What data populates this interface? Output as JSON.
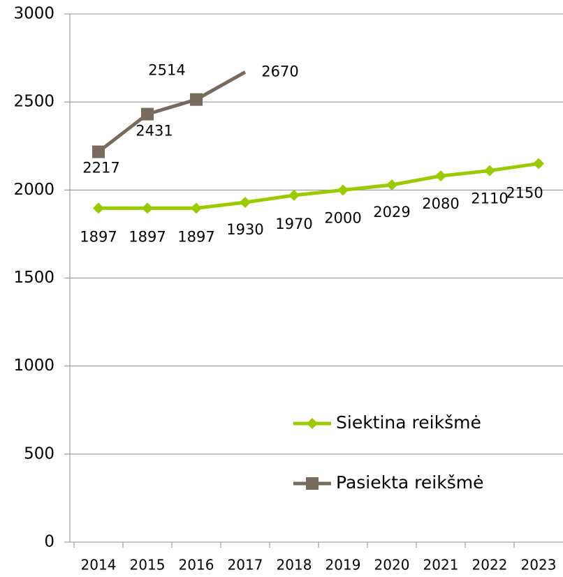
{
  "chart_data": {
    "type": "line",
    "categories": [
      "2014",
      "2015",
      "2016",
      "2017",
      "2018",
      "2019",
      "2020",
      "2021",
      "2022",
      "2023"
    ],
    "series": [
      {
        "name": "Siektina reikšmė",
        "color": "#99cc00",
        "marker": "diamond",
        "values": [
          1897,
          1897,
          1897,
          1930,
          1970,
          2000,
          2029,
          2080,
          2110,
          2150
        ]
      },
      {
        "name": "Pasiekta reikšmė",
        "color": "#776b5d",
        "marker": "square",
        "values": [
          2217,
          2431,
          2514,
          2670,
          null,
          null,
          null,
          null,
          null,
          null
        ]
      }
    ],
    "ylim": [
      0,
      3000
    ],
    "yticks": [
      0,
      500,
      1000,
      1500,
      2000,
      2500,
      3000
    ],
    "grid": true
  }
}
